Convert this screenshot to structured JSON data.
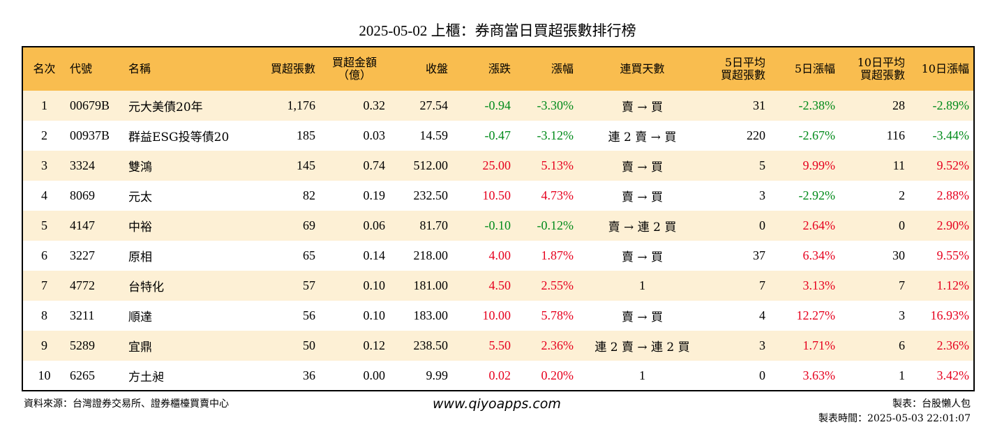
{
  "title": "2025-05-02 上櫃：券商當日買超張數排行榜",
  "headers": {
    "rank": "名次",
    "code": "代號",
    "name": "名稱",
    "net_lots": "買超張數",
    "net_amount_line1": "買超金額",
    "net_amount_line2": "（億）",
    "close": "收盤",
    "change": "漲跌",
    "change_pct": "漲幅",
    "streak": "連買天數",
    "avg5_line1": "5日平均",
    "avg5_line2": "買超張數",
    "pct5": "5日漲幅",
    "avg10_line1": "10日平均",
    "avg10_line2": "買超張數",
    "pct10": "10日漲幅"
  },
  "rows": [
    {
      "rank": "1",
      "code": "00679B",
      "name": "元大美債20年",
      "net_lots": "1,176",
      "net_amount": "0.32",
      "close": "27.54",
      "change": "-0.94",
      "change_pct": "-3.30%",
      "streak": "賣 → 買",
      "avg5": "31",
      "pct5": "-2.38%",
      "avg10": "28",
      "pct10": "-2.89%"
    },
    {
      "rank": "2",
      "code": "00937B",
      "name": "群益ESG投等債20",
      "net_lots": "185",
      "net_amount": "0.03",
      "close": "14.59",
      "change": "-0.47",
      "change_pct": "-3.12%",
      "streak": "連 2 賣 → 買",
      "avg5": "220",
      "pct5": "-2.67%",
      "avg10": "116",
      "pct10": "-3.44%"
    },
    {
      "rank": "3",
      "code": "3324",
      "name": "雙鴻",
      "net_lots": "145",
      "net_amount": "0.74",
      "close": "512.00",
      "change": "25.00",
      "change_pct": "5.13%",
      "streak": "賣 → 買",
      "avg5": "5",
      "pct5": "9.99%",
      "avg10": "11",
      "pct10": "9.52%"
    },
    {
      "rank": "4",
      "code": "8069",
      "name": "元太",
      "net_lots": "82",
      "net_amount": "0.19",
      "close": "232.50",
      "change": "10.50",
      "change_pct": "4.73%",
      "streak": "賣 → 買",
      "avg5": "3",
      "pct5": "-2.92%",
      "avg10": "2",
      "pct10": "2.88%"
    },
    {
      "rank": "5",
      "code": "4147",
      "name": "中裕",
      "net_lots": "69",
      "net_amount": "0.06",
      "close": "81.70",
      "change": "-0.10",
      "change_pct": "-0.12%",
      "streak": "賣 → 連 2 買",
      "avg5": "0",
      "pct5": "2.64%",
      "avg10": "0",
      "pct10": "2.90%"
    },
    {
      "rank": "6",
      "code": "3227",
      "name": "原相",
      "net_lots": "65",
      "net_amount": "0.14",
      "close": "218.00",
      "change": "4.00",
      "change_pct": "1.87%",
      "streak": "賣 → 買",
      "avg5": "37",
      "pct5": "6.34%",
      "avg10": "30",
      "pct10": "9.55%"
    },
    {
      "rank": "7",
      "code": "4772",
      "name": "台特化",
      "net_lots": "57",
      "net_amount": "0.10",
      "close": "181.00",
      "change": "4.50",
      "change_pct": "2.55%",
      "streak": "1",
      "avg5": "7",
      "pct5": "3.13%",
      "avg10": "7",
      "pct10": "1.12%"
    },
    {
      "rank": "8",
      "code": "3211",
      "name": "順達",
      "net_lots": "56",
      "net_amount": "0.10",
      "close": "183.00",
      "change": "10.00",
      "change_pct": "5.78%",
      "streak": "賣 → 買",
      "avg5": "4",
      "pct5": "12.27%",
      "avg10": "3",
      "pct10": "16.93%"
    },
    {
      "rank": "9",
      "code": "5289",
      "name": "宜鼎",
      "net_lots": "50",
      "net_amount": "0.12",
      "close": "238.50",
      "change": "5.50",
      "change_pct": "2.36%",
      "streak": "連 2 賣 → 連 2 買",
      "avg5": "3",
      "pct5": "1.71%",
      "avg10": "6",
      "pct10": "2.36%"
    },
    {
      "rank": "10",
      "code": "6265",
      "name": "方土昶",
      "net_lots": "36",
      "net_amount": "0.00",
      "close": "9.99",
      "change": "0.02",
      "change_pct": "0.20%",
      "streak": "1",
      "avg5": "0",
      "pct5": "3.63%",
      "avg10": "1",
      "pct10": "3.42%"
    }
  ],
  "footer": {
    "source": "資料來源：台灣證券交易所、證券櫃檯買賣中心",
    "website": "www.qiyoapps.com",
    "maker": "製表：台股懶人包",
    "made_time": "製表時間：2025-05-03 22:01:07"
  },
  "colors": {
    "header_bg": "#f9bd4f",
    "stripe_bg": "#fdf0d5",
    "up": "#e6001e",
    "down": "#008a1a"
  }
}
